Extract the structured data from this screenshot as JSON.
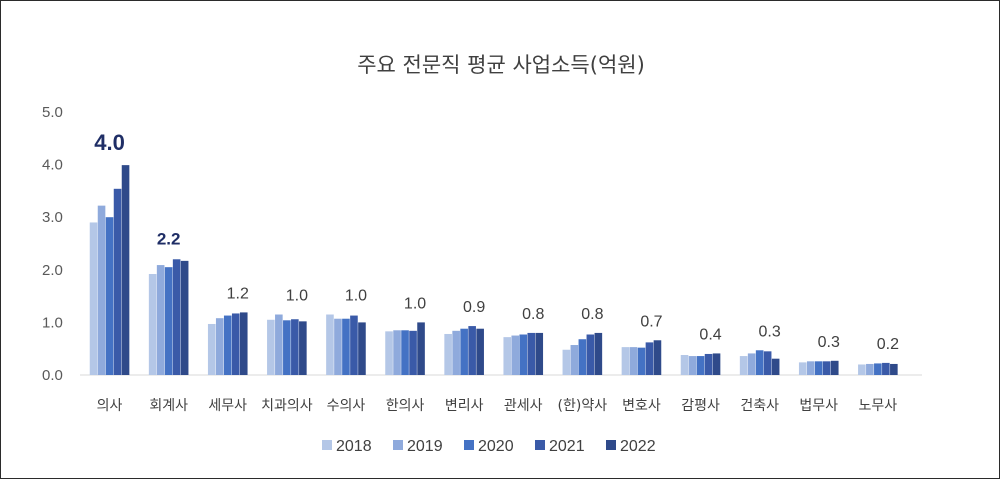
{
  "chart_data": {
    "type": "bar",
    "title": "주요 전문직 평균 사업소득(억원)",
    "xlabel": "",
    "ylabel": "",
    "ylim": [
      0,
      5
    ],
    "yticks": [
      "0.0",
      "1.0",
      "2.0",
      "3.0",
      "4.0",
      "5.0"
    ],
    "categories": [
      "의사",
      "회계사",
      "세무사",
      "치과의사",
      "수의사",
      "한의사",
      "변리사",
      "관세사",
      "(한)약사",
      "변호사",
      "감평사",
      "건축사",
      "법무사",
      "노무사"
    ],
    "series": [
      {
        "name": "2018",
        "color": "#b4c7e7",
        "values": [
          2.9,
          1.92,
          0.97,
          1.05,
          1.15,
          0.83,
          0.78,
          0.72,
          0.48,
          0.53,
          0.38,
          0.36,
          0.24,
          0.2
        ]
      },
      {
        "name": "2019",
        "color": "#8faadc",
        "values": [
          3.22,
          2.09,
          1.08,
          1.15,
          1.07,
          0.85,
          0.84,
          0.75,
          0.57,
          0.53,
          0.36,
          0.41,
          0.26,
          0.21
        ]
      },
      {
        "name": "2020",
        "color": "#4472c4",
        "values": [
          3.0,
          2.05,
          1.13,
          1.04,
          1.07,
          0.85,
          0.88,
          0.77,
          0.68,
          0.52,
          0.36,
          0.47,
          0.26,
          0.22
        ]
      },
      {
        "name": "2021",
        "color": "#3a5aa8",
        "values": [
          3.54,
          2.2,
          1.17,
          1.06,
          1.13,
          0.84,
          0.93,
          0.8,
          0.77,
          0.62,
          0.4,
          0.45,
          0.26,
          0.23
        ]
      },
      {
        "name": "2022",
        "color": "#2f4a8a",
        "values": [
          3.99,
          2.17,
          1.19,
          1.02,
          1.0,
          1.0,
          0.88,
          0.8,
          0.8,
          0.66,
          0.41,
          0.31,
          0.27,
          0.21
        ]
      }
    ],
    "data_labels": [
      "4.0",
      "2.2",
      "1.2",
      "1.0",
      "1.0",
      "1.0",
      "0.9",
      "0.8",
      "0.8",
      "0.7",
      "0.4",
      "0.3",
      "0.3",
      "0.2"
    ],
    "highlighted_labels": [
      0,
      1
    ],
    "grid": false,
    "legend": "bottom"
  }
}
